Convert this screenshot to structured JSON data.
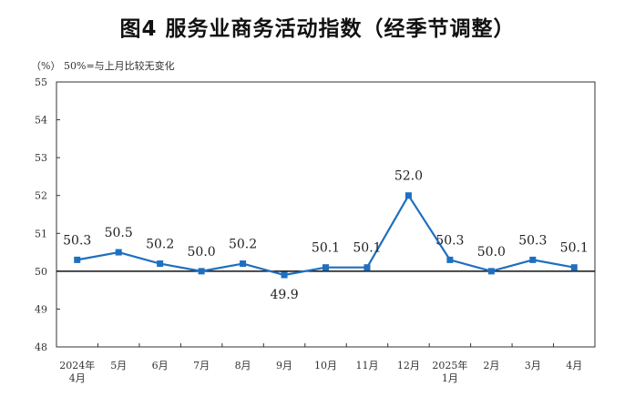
{
  "chart_data": {
    "type": "line",
    "title": "图4  服务业商务活动指数（经季节调整）",
    "unit_label": "（%）",
    "reference_note": "50%=与上月比较无变化",
    "reference_value": 50,
    "categories": [
      [
        "2024年",
        "4月"
      ],
      [
        "5月"
      ],
      [
        "6月"
      ],
      [
        "7月"
      ],
      [
        "8月"
      ],
      [
        "9月"
      ],
      [
        "10月"
      ],
      [
        "11月"
      ],
      [
        "12月"
      ],
      [
        "2025年",
        "1月"
      ],
      [
        "2月"
      ],
      [
        "3月"
      ],
      [
        "4月"
      ]
    ],
    "values": [
      50.3,
      50.5,
      50.2,
      50.0,
      50.2,
      49.9,
      50.1,
      50.1,
      52.0,
      50.3,
      50.0,
      50.3,
      50.1
    ],
    "value_labels": [
      "50.3",
      "50.5",
      "50.2",
      "50.0",
      "50.2",
      "49.9",
      "50.1",
      "50.1",
      "52.0",
      "50.3",
      "50.0",
      "50.3",
      "50.1"
    ],
    "ylim": [
      48,
      55
    ],
    "yticks": [
      "48",
      "49",
      "50",
      "51",
      "52",
      "53",
      "54",
      "55"
    ],
    "grid": false,
    "color": "#1f6fc0"
  }
}
